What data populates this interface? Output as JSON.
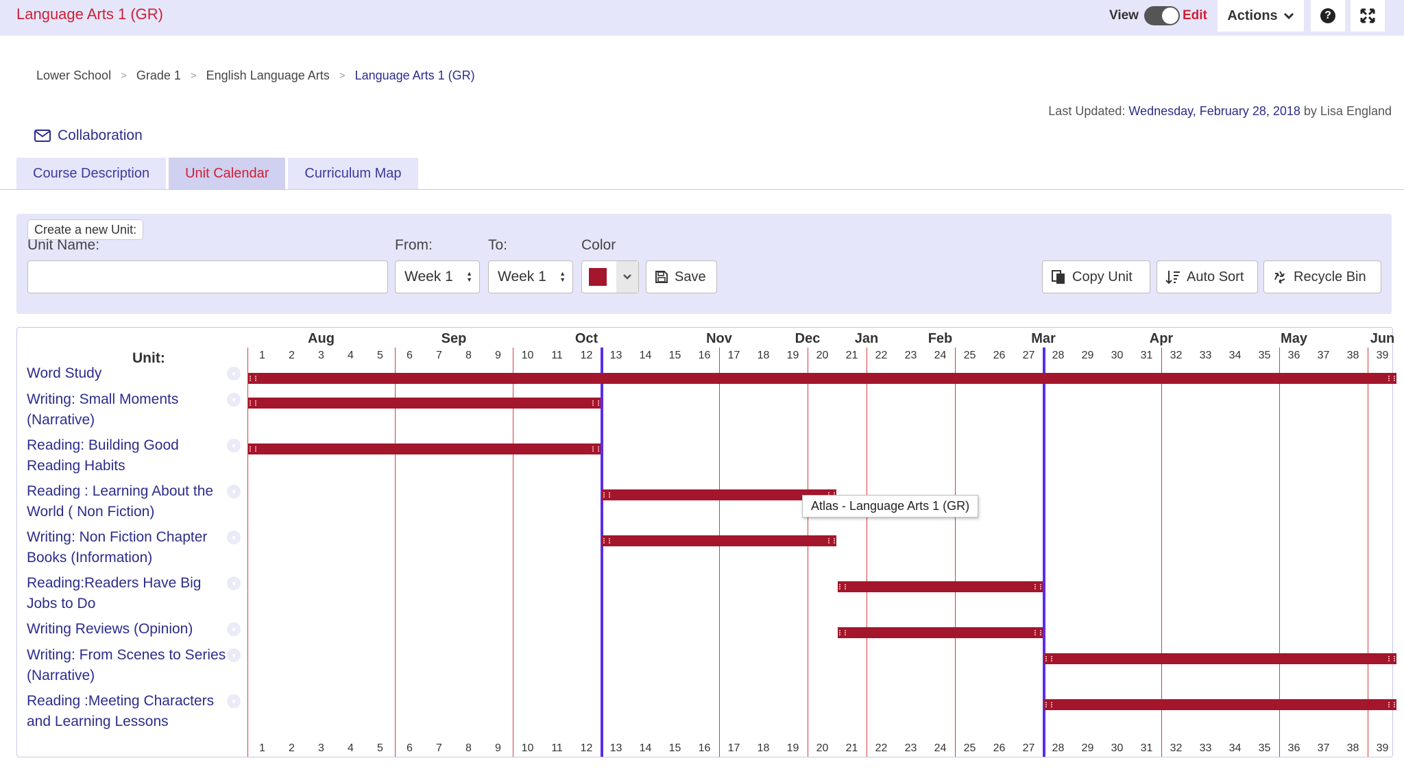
{
  "app": {
    "title": "Language Arts 1 (GR)"
  },
  "topbar": {
    "view_label": "View",
    "edit_label": "Edit",
    "actions_label": "Actions"
  },
  "breadcrumb": [
    "Lower School",
    "Grade 1",
    "English Language Arts",
    "Language Arts 1 (GR)"
  ],
  "last_updated": {
    "label": "Last Updated:",
    "date": "Wednesday, February 28, 2018",
    "by": "by Lisa England"
  },
  "collaboration_label": "Collaboration",
  "tabs": [
    {
      "label": "Course Description",
      "active": false
    },
    {
      "label": "Unit Calendar",
      "active": true
    },
    {
      "label": "Curriculum Map",
      "active": false
    }
  ],
  "create_unit": {
    "legend": "Create a new Unit:",
    "unit_name_label": "Unit Name:",
    "unit_name_value": "",
    "from_label": "From:",
    "from_value": "Week 1",
    "to_label": "To:",
    "to_value": "Week 1",
    "color_label": "Color",
    "color_value": "#a3162c",
    "save_label": "Save",
    "copy_unit_label": "Copy Unit",
    "auto_sort_label": "Auto Sort",
    "recycle_bin_label": "Recycle Bin"
  },
  "calendar": {
    "unit_header": "Unit:",
    "weeks": [
      1,
      2,
      3,
      4,
      5,
      6,
      7,
      8,
      9,
      10,
      11,
      12,
      13,
      14,
      15,
      16,
      17,
      18,
      19,
      20,
      21,
      22,
      23,
      24,
      25,
      26,
      27,
      28,
      29,
      30,
      31,
      32,
      33,
      34,
      35,
      36,
      37,
      38,
      39
    ],
    "months": [
      {
        "label": "Aug",
        "center_week": 3
      },
      {
        "label": "Sep",
        "center_week": 7.5
      },
      {
        "label": "Oct",
        "center_week": 12
      },
      {
        "label": "Nov",
        "center_week": 16.5
      },
      {
        "label": "Dec",
        "center_week": 19.5
      },
      {
        "label": "Jan",
        "center_week": 21.5
      },
      {
        "label": "Feb",
        "center_week": 24
      },
      {
        "label": "Mar",
        "center_week": 27.5
      },
      {
        "label": "Apr",
        "center_week": 31.5
      },
      {
        "label": "May",
        "center_week": 36
      },
      {
        "label": "Jun",
        "center_week": 39
      }
    ],
    "month_dividers_after_week": [
      5,
      9,
      16,
      19,
      21,
      24,
      31,
      35,
      38
    ],
    "term_dividers_after_week": [
      12,
      27
    ],
    "bar_color": "#a3162c",
    "units": [
      {
        "name": "Word Study",
        "start_week": 1,
        "end_week": 39
      },
      {
        "name": "Writing: Small Moments (Narrative)",
        "start_week": 1,
        "end_week": 12
      },
      {
        "name": "Reading: Building Good Reading Habits",
        "start_week": 1,
        "end_week": 12
      },
      {
        "name": "Reading : Learning About the World ( Non Fiction)",
        "start_week": 13,
        "end_week": 20
      },
      {
        "name": "Writing: Non Fiction Chapter Books (Information)",
        "start_week": 13,
        "end_week": 20
      },
      {
        "name": "Reading:Readers Have Big Jobs to Do",
        "start_week": 21,
        "end_week": 27
      },
      {
        "name": "Writing Reviews (Opinion)",
        "start_week": 21,
        "end_week": 27
      },
      {
        "name": "Writing: From Scenes to Series (Narrative)",
        "start_week": 28,
        "end_week": 39
      },
      {
        "name": "Reading :Meeting Characters and Learning Lessons",
        "start_week": 28,
        "end_week": 39
      }
    ]
  },
  "tooltip": "Atlas - Language Arts 1 (GR)"
}
